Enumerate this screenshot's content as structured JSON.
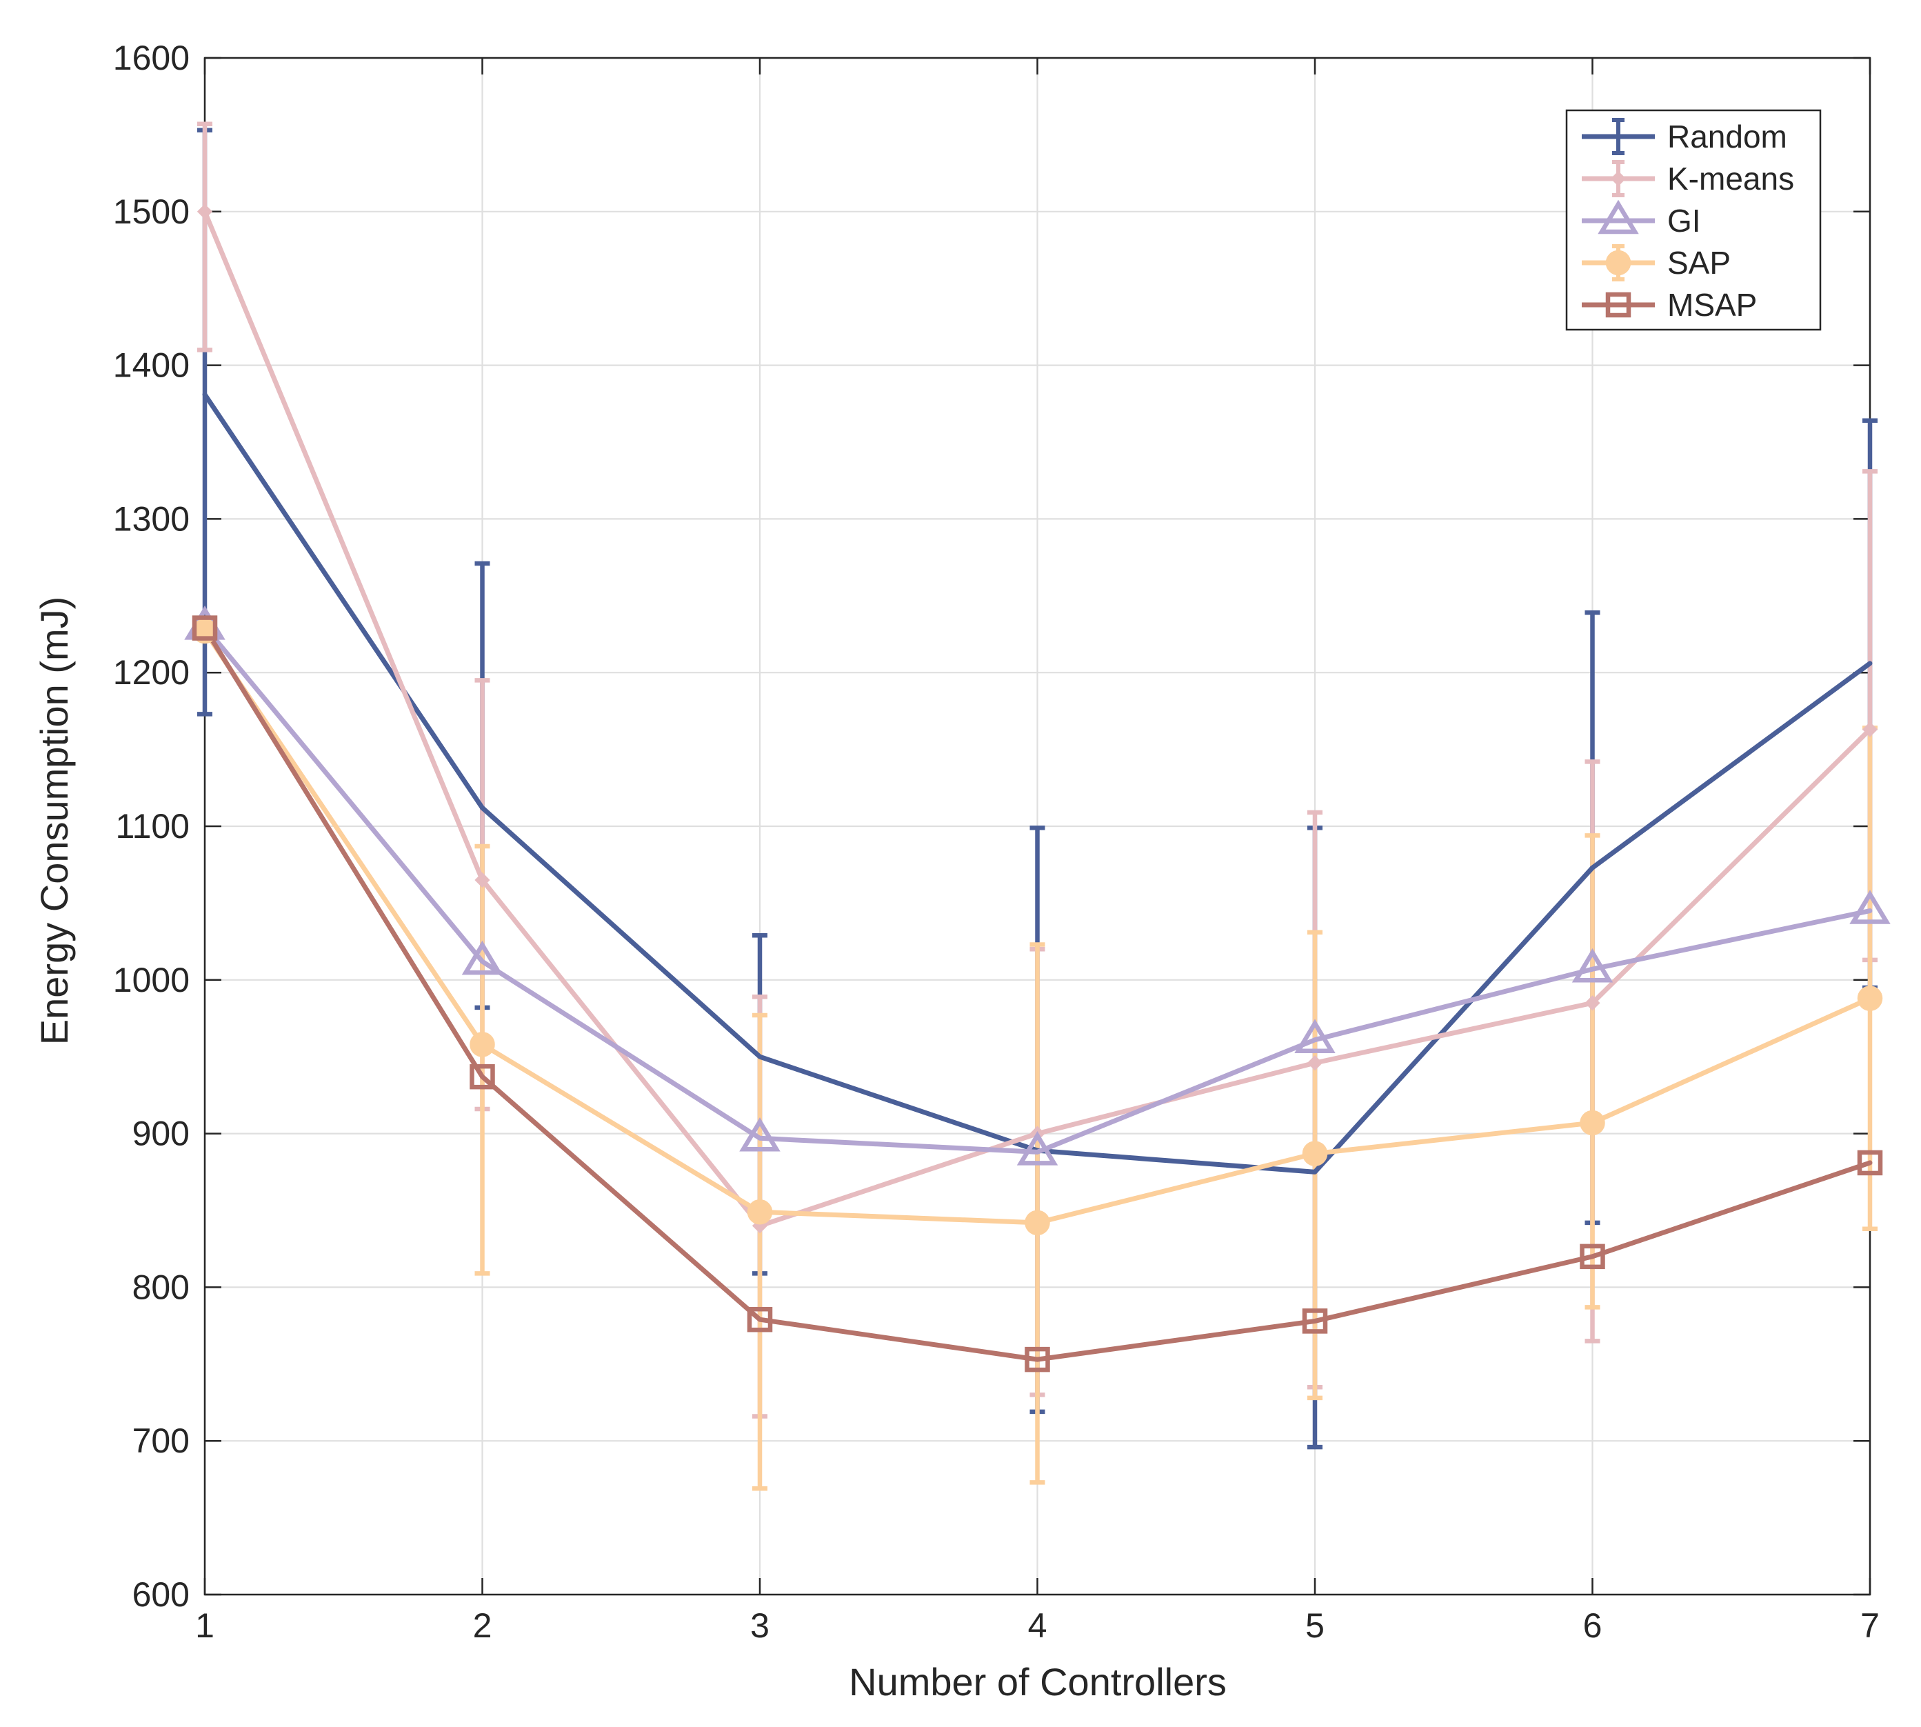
{
  "chart_data": {
    "type": "line",
    "title": "",
    "xlabel": "Number of Controllers",
    "ylabel": "Energy Consumption (mJ)",
    "xlim": [
      1,
      7
    ],
    "ylim": [
      600,
      1600
    ],
    "xticks": [
      1,
      2,
      3,
      4,
      5,
      6,
      7
    ],
    "yticks": [
      600,
      700,
      800,
      900,
      1000,
      1100,
      1200,
      1300,
      1400,
      1500,
      1600
    ],
    "grid": true,
    "legend_position": "top-right",
    "x": [
      1,
      2,
      3,
      4,
      5,
      6,
      7
    ],
    "series": [
      {
        "name": "Random",
        "color": "#4a5f98",
        "marker": "none",
        "values": [
          1381,
          1112,
          950,
          889,
          875,
          1073,
          1206
        ],
        "err_upper": [
          1553,
          1271,
          1029,
          1099,
          1099,
          1239,
          1364
        ],
        "err_lower": [
          1173,
          982,
          809,
          719,
          696,
          842,
          995
        ]
      },
      {
        "name": "K-means",
        "color": "#e6bbbf",
        "marker": "diamond",
        "values": [
          1500,
          1065,
          840,
          900,
          946,
          985,
          1163
        ],
        "err_upper": [
          1557,
          1195,
          989,
          1020,
          1109,
          1142,
          1331
        ],
        "err_lower": [
          1410,
          916,
          716,
          730,
          735,
          765,
          1013
        ]
      },
      {
        "name": "GI",
        "color": "#b3a5d1",
        "marker": "triangle",
        "values": [
          1230,
          1012,
          897,
          888,
          961,
          1007,
          1045
        ],
        "err_upper": [],
        "err_lower": []
      },
      {
        "name": "SAP",
        "color": "#fccf9b",
        "marker": "circle",
        "values": [
          1227,
          958,
          849,
          842,
          887,
          907,
          988
        ],
        "err_upper": [
          1233,
          1087,
          977,
          1023,
          1031,
          1094,
          1164
        ],
        "err_lower": [
          1222,
          809,
          669,
          673,
          728,
          787,
          838
        ]
      },
      {
        "name": "MSAP",
        "color": "#b6736a",
        "marker": "square",
        "values": [
          1229,
          937,
          779,
          753,
          778,
          820,
          881
        ],
        "err_upper": [],
        "err_lower": []
      }
    ]
  }
}
